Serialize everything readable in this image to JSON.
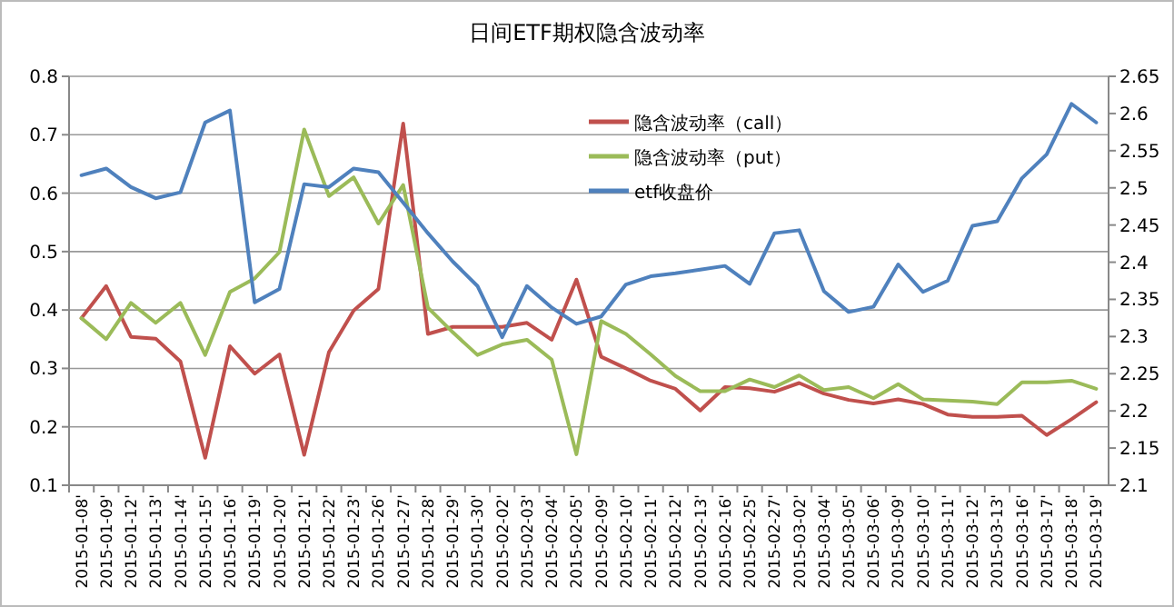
{
  "chart_data": {
    "type": "line",
    "title": "日间ETF期权隐含波动率",
    "categories": [
      "2015-01-08'",
      "2015-01-09'",
      "2015-01-12'",
      "2015-01-13'",
      "2015-01-14'",
      "2015-01-15'",
      "2015-01-16'",
      "2015-01-19'",
      "2015-01-20'",
      "2015-01-21'",
      "2015-01-22'",
      "2015-01-23'",
      "2015-01-26'",
      "2015-01-27'",
      "2015-01-28'",
      "2015-01-29'",
      "2015-01-30'",
      "2015-02-02'",
      "2015-02-03'",
      "2015-02-04'",
      "2015-02-05'",
      "2015-02-09'",
      "2015-02-10'",
      "2015-02-11'",
      "2015-02-12'",
      "2015-02-13'",
      "2015-02-16'",
      "2015-02-25'",
      "2015-02-27'",
      "2015-03-02'",
      "2015-03-04'",
      "2015-03-05'",
      "2015-03-06'",
      "2015-03-09'",
      "2015-03-10'",
      "2015-03-11'",
      "2015-03-12'",
      "2015-03-13'",
      "2015-03-16'",
      "2015-03-17'",
      "2015-03-18'",
      "2015-03-19'"
    ],
    "series": [
      {
        "name": "隐含波动率（call）",
        "color": "#c0504d",
        "values": [
          0.386,
          0.441,
          0.354,
          0.351,
          0.312,
          0.147,
          0.338,
          0.291,
          0.324,
          0.152,
          0.328,
          0.399,
          0.436,
          0.719,
          0.359,
          0.371,
          0.371,
          0.371,
          0.378,
          0.349,
          0.452,
          0.32,
          0.3,
          0.279,
          0.265,
          0.228,
          0.268,
          0.266,
          0.26,
          0.275,
          0.257,
          0.246,
          0.24,
          0.247,
          0.239,
          0.221,
          0.217,
          0.217,
          0.219,
          0.186,
          0.213,
          0.242
        ]
      },
      {
        "name": "隐含波动率（put）",
        "color": "#9bbb59",
        "values": [
          0.386,
          0.35,
          0.412,
          0.378,
          0.412,
          0.323,
          0.431,
          0.454,
          0.499,
          0.709,
          0.595,
          0.627,
          0.548,
          0.614,
          0.404,
          0.362,
          0.323,
          0.341,
          0.349,
          0.315,
          0.153,
          0.381,
          0.359,
          0.324,
          0.287,
          0.261,
          0.261,
          0.281,
          0.268,
          0.288,
          0.263,
          0.268,
          0.249,
          0.273,
          0.247,
          0.245,
          0.243,
          0.239,
          0.276,
          0.276,
          0.279,
          0.265
        ]
      },
      {
        "name": "etf收盘价",
        "color": "#4f81bd",
        "axis": "y2",
        "values": [
          2.517,
          2.526,
          2.501,
          2.486,
          2.494,
          2.588,
          2.604,
          2.346,
          2.364,
          2.505,
          2.501,
          2.526,
          2.521,
          2.48,
          2.439,
          2.401,
          2.368,
          2.299,
          2.368,
          2.339,
          2.317,
          2.327,
          2.37,
          2.381,
          2.385,
          2.39,
          2.395,
          2.371,
          2.439,
          2.443,
          2.361,
          2.333,
          2.34,
          2.397,
          2.36,
          2.375,
          2.449,
          2.455,
          2.513,
          2.545,
          2.613,
          2.588
        ]
      }
    ],
    "ylim": [
      0.1,
      0.8
    ],
    "yticks": [
      0.1,
      0.2,
      0.3,
      0.4,
      0.5,
      0.6,
      0.7,
      0.8
    ],
    "y2lim": [
      2.1,
      2.65
    ],
    "y2ticks": [
      2.1,
      2.15,
      2.2,
      2.25,
      2.3,
      2.35,
      2.4,
      2.45,
      2.5,
      2.55,
      2.6,
      2.65
    ],
    "grid": "y",
    "legend": "top right",
    "marker": "none",
    "line_style": "solid"
  }
}
